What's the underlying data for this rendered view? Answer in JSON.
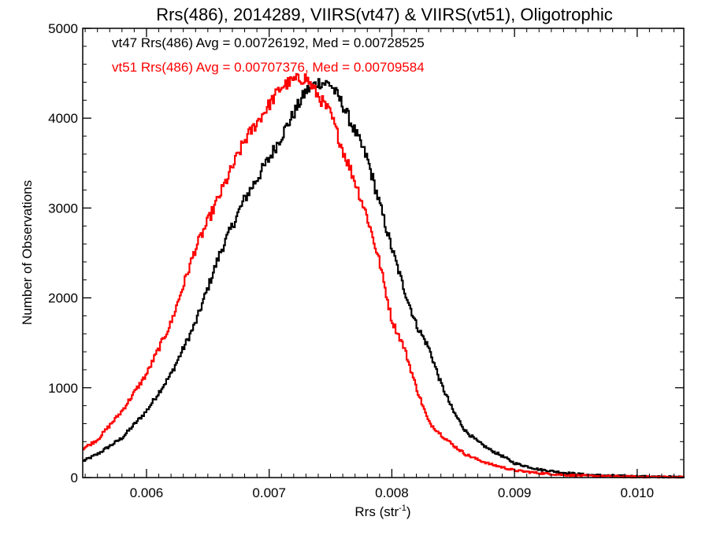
{
  "chart_data": {
    "type": "step-histogram",
    "title": "Rrs(486), 2014289, VIIRS(vt47) & VIIRS(vt51), Oligotrophic",
    "xlabel_main": "Rrs (str",
    "xlabel_sup": "-1",
    "xlabel_close": ")",
    "ylabel": "Number of Observations",
    "xlim": [
      0.00548,
      0.01038
    ],
    "ylim": [
      0,
      5000
    ],
    "xticks": [
      0.006,
      0.007,
      0.008,
      0.009,
      0.01
    ],
    "xtick_labels": [
      "0.006",
      "0.007",
      "0.008",
      "0.009",
      "0.010"
    ],
    "yticks": [
      0,
      1000,
      2000,
      3000,
      4000,
      5000
    ],
    "ytick_labels": [
      "0",
      "1000",
      "2000",
      "3000",
      "4000",
      "5000"
    ],
    "grid": false,
    "legend_placement": "top-left",
    "series": [
      {
        "name": "vt47",
        "label": "vt47 Rrs(486) Avg = 0.00726192, Med = 0.00728525",
        "color": "#000000",
        "points": [
          [
            0.00548,
            180
          ],
          [
            0.0056,
            260
          ],
          [
            0.0058,
            440
          ],
          [
            0.006,
            740
          ],
          [
            0.0062,
            1150
          ],
          [
            0.0064,
            1720
          ],
          [
            0.0066,
            2500
          ],
          [
            0.0068,
            3100
          ],
          [
            0.007,
            3550
          ],
          [
            0.0072,
            4050
          ],
          [
            0.0073,
            4300
          ],
          [
            0.0074,
            4400
          ],
          [
            0.0075,
            4380
          ],
          [
            0.0076,
            4150
          ],
          [
            0.0077,
            3850
          ],
          [
            0.0078,
            3550
          ],
          [
            0.0079,
            3050
          ],
          [
            0.008,
            2550
          ],
          [
            0.0081,
            2100
          ],
          [
            0.0082,
            1700
          ],
          [
            0.0083,
            1450
          ],
          [
            0.0084,
            1050
          ],
          [
            0.0085,
            740
          ],
          [
            0.0086,
            520
          ],
          [
            0.0087,
            400
          ],
          [
            0.0088,
            310
          ],
          [
            0.0089,
            240
          ],
          [
            0.009,
            160
          ],
          [
            0.0092,
            90
          ],
          [
            0.0094,
            55
          ],
          [
            0.0096,
            30
          ],
          [
            0.0098,
            20
          ],
          [
            0.01,
            12
          ],
          [
            0.0102,
            8
          ],
          [
            0.01038,
            5
          ]
        ]
      },
      {
        "name": "vt51",
        "label": "vt51 Rrs(486) Avg = 0.00707376, Med = 0.00709584",
        "color": "#ff0000",
        "points": [
          [
            0.00548,
            320
          ],
          [
            0.0056,
            420
          ],
          [
            0.0058,
            740
          ],
          [
            0.006,
            1150
          ],
          [
            0.0062,
            1720
          ],
          [
            0.0064,
            2550
          ],
          [
            0.0066,
            3150
          ],
          [
            0.0068,
            3750
          ],
          [
            0.007,
            4150
          ],
          [
            0.0071,
            4350
          ],
          [
            0.0072,
            4420
          ],
          [
            0.0073,
            4450
          ],
          [
            0.0074,
            4250
          ],
          [
            0.0075,
            4050
          ],
          [
            0.0076,
            3650
          ],
          [
            0.0077,
            3300
          ],
          [
            0.0078,
            2900
          ],
          [
            0.0079,
            2400
          ],
          [
            0.008,
            1750
          ],
          [
            0.0081,
            1450
          ],
          [
            0.0082,
            1000
          ],
          [
            0.0083,
            620
          ],
          [
            0.0084,
            480
          ],
          [
            0.0085,
            360
          ],
          [
            0.0086,
            260
          ],
          [
            0.0087,
            200
          ],
          [
            0.0088,
            150
          ],
          [
            0.009,
            80
          ],
          [
            0.0092,
            50
          ],
          [
            0.0094,
            30
          ],
          [
            0.0096,
            18
          ],
          [
            0.0098,
            12
          ],
          [
            0.01,
            8
          ],
          [
            0.0102,
            6
          ],
          [
            0.01038,
            4
          ]
        ]
      }
    ]
  }
}
